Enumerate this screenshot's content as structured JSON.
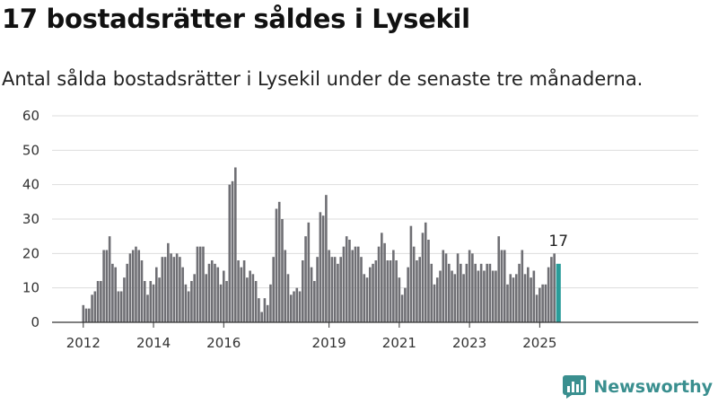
{
  "title": "17 bostadsrätter såldes i Lysekil",
  "subtitle": "Antal sålda bostadsrätter i Lysekil under de senaste tre månaderna.",
  "brand": {
    "name": "Newsworthy"
  },
  "colors": {
    "bar": "#6f6f74",
    "highlight": "#2a9d9a",
    "grid": "#dddddd",
    "brand": "#3a8f8f"
  },
  "chart_data": {
    "type": "bar",
    "title": "17 bostadsrätter såldes i Lysekil",
    "xlabel": "",
    "ylabel": "",
    "ylim": [
      0,
      60
    ],
    "yticks": [
      0,
      10,
      20,
      30,
      40,
      50,
      60
    ],
    "xticks": [
      "2012",
      "2014",
      "2016",
      "2019",
      "2021",
      "2023",
      "2025"
    ],
    "grid": true,
    "highlight_last": true,
    "last_value_label": "17",
    "values": [
      5,
      4,
      4,
      8,
      9,
      12,
      12,
      21,
      21,
      25,
      17,
      16,
      9,
      9,
      13,
      17,
      20,
      21,
      22,
      21,
      18,
      12,
      8,
      12,
      11,
      16,
      13,
      19,
      19,
      23,
      20,
      19,
      20,
      19,
      16,
      11,
      9,
      12,
      14,
      22,
      22,
      22,
      14,
      17,
      18,
      17,
      16,
      11,
      15,
      12,
      40,
      41,
      45,
      18,
      16,
      18,
      13,
      15,
      14,
      12,
      7,
      3,
      7,
      5,
      11,
      19,
      33,
      35,
      30,
      21,
      14,
      8,
      9,
      10,
      9,
      18,
      25,
      29,
      16,
      12,
      19,
      32,
      31,
      37,
      21,
      19,
      19,
      17,
      19,
      22,
      25,
      24,
      21,
      22,
      22,
      19,
      14,
      13,
      16,
      17,
      18,
      22,
      26,
      23,
      18,
      18,
      21,
      18,
      13,
      8,
      10,
      16,
      28,
      22,
      18,
      19,
      26,
      29,
      24,
      17,
      11,
      13,
      15,
      21,
      20,
      17,
      15,
      14,
      20,
      17,
      14,
      17,
      21,
      20,
      17,
      15,
      17,
      15,
      17,
      17,
      15,
      15,
      25,
      21,
      21,
      11,
      14,
      13,
      14,
      17,
      21,
      14,
      16,
      13,
      15,
      8,
      10,
      11,
      11,
      16,
      19,
      20,
      17
    ]
  }
}
